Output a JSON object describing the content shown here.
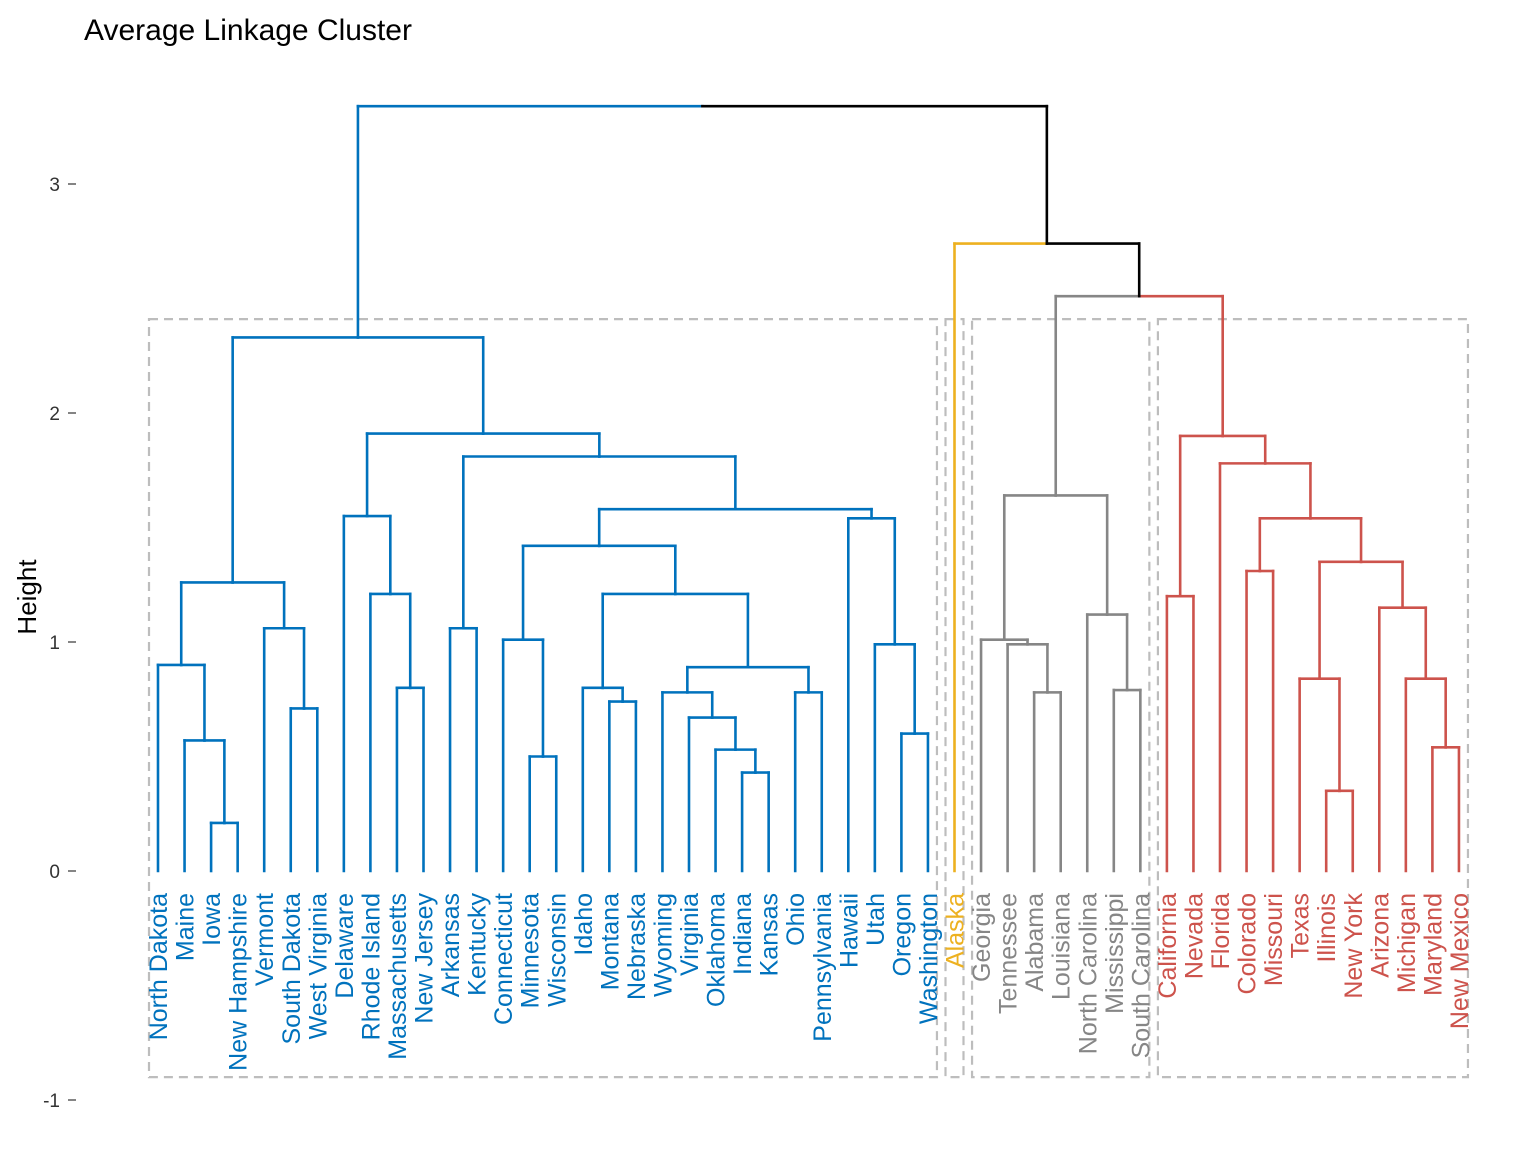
{
  "chart_data": {
    "type": "dendrogram",
    "title": "Average Linkage Cluster",
    "xlabel": "",
    "ylabel": "Height",
    "ylim": [
      -1,
      3.4
    ],
    "yticks": [
      -1,
      0,
      1,
      2,
      3
    ],
    "grid": false,
    "leaves": [
      "North Dakota",
      "Maine",
      "Iowa",
      "New Hampshire",
      "Vermont",
      "South Dakota",
      "West Virginia",
      "Delaware",
      "Rhode Island",
      "Massachusetts",
      "New Jersey",
      "Arkansas",
      "Kentucky",
      "Connecticut",
      "Minnesota",
      "Wisconsin",
      "Idaho",
      "Montana",
      "Nebraska",
      "Wyoming",
      "Virginia",
      "Oklahoma",
      "Indiana",
      "Kansas",
      "Ohio",
      "Pennsylvania",
      "Hawaii",
      "Utah",
      "Oregon",
      "Washington",
      "Alaska",
      "Georgia",
      "Tennessee",
      "Alabama",
      "Louisiana",
      "North Carolina",
      "Mississippi",
      "South Carolina",
      "California",
      "Nevada",
      "Florida",
      "Colorado",
      "Missouri",
      "Texas",
      "Illinois",
      "New York",
      "Arizona",
      "Michigan",
      "Maryland",
      "New Mexico"
    ],
    "clusters": [
      {
        "color": "#0072BD",
        "leaves": [
          0,
          29
        ]
      },
      {
        "color": "#EDB120",
        "leaves": [
          30,
          30
        ]
      },
      {
        "color": "#868686",
        "leaves": [
          31,
          37
        ]
      },
      {
        "color": "#CD534C",
        "leaves": [
          38,
          49
        ]
      }
    ],
    "link_colors": {
      "root": "#000000"
    },
    "merges": [
      {
        "id": "A1",
        "left": 2,
        "right": 3,
        "height": 0.21,
        "color": "#0072BD"
      },
      {
        "id": "A2",
        "left": 1,
        "right": "A1",
        "height": 0.57,
        "color": "#0072BD"
      },
      {
        "id": "A3",
        "left": 0,
        "right": "A2",
        "height": 0.9,
        "color": "#0072BD"
      },
      {
        "id": "A4",
        "left": 5,
        "right": 6,
        "height": 0.71,
        "color": "#0072BD"
      },
      {
        "id": "A5",
        "left": 4,
        "right": "A4",
        "height": 1.06,
        "color": "#0072BD"
      },
      {
        "id": "A6",
        "left": "A3",
        "right": "A5",
        "height": 1.26,
        "color": "#0072BD"
      },
      {
        "id": "B1",
        "left": 9,
        "right": 10,
        "height": 0.8,
        "color": "#0072BD"
      },
      {
        "id": "B2",
        "left": 8,
        "right": "B1",
        "height": 1.21,
        "color": "#0072BD"
      },
      {
        "id": "B3",
        "left": 7,
        "right": "B2",
        "height": 1.55,
        "color": "#0072BD"
      },
      {
        "id": "C1",
        "left": 11,
        "right": 12,
        "height": 1.06,
        "color": "#0072BD"
      },
      {
        "id": "D1",
        "left": 14,
        "right": 15,
        "height": 0.5,
        "color": "#0072BD"
      },
      {
        "id": "D2",
        "left": 13,
        "right": "D1",
        "height": 1.01,
        "color": "#0072BD"
      },
      {
        "id": "E1",
        "left": 17,
        "right": 18,
        "height": 0.74,
        "color": "#0072BD"
      },
      {
        "id": "E2",
        "left": 16,
        "right": "E1",
        "height": 0.8,
        "color": "#0072BD"
      },
      {
        "id": "F1",
        "left": 22,
        "right": 23,
        "height": 0.43,
        "color": "#0072BD"
      },
      {
        "id": "F2",
        "left": 21,
        "right": "F1",
        "height": 0.53,
        "color": "#0072BD"
      },
      {
        "id": "F3",
        "left": 20,
        "right": "F2",
        "height": 0.67,
        "color": "#0072BD"
      },
      {
        "id": "F4",
        "left": 19,
        "right": "F3",
        "height": 0.78,
        "color": "#0072BD"
      },
      {
        "id": "F5",
        "left": 24,
        "right": 25,
        "height": 0.78,
        "color": "#0072BD"
      },
      {
        "id": "F6",
        "left": "F4",
        "right": "F5",
        "height": 0.89,
        "color": "#0072BD"
      },
      {
        "id": "E3",
        "left": "E2",
        "right": "F6",
        "height": 1.21,
        "color": "#0072BD"
      },
      {
        "id": "D3",
        "left": "D2",
        "right": "E3",
        "height": 1.42,
        "color": "#0072BD"
      },
      {
        "id": "G1",
        "left": 28,
        "right": 29,
        "height": 0.6,
        "color": "#0072BD"
      },
      {
        "id": "G2",
        "left": 27,
        "right": "G1",
        "height": 0.99,
        "color": "#0072BD"
      },
      {
        "id": "G3",
        "left": 26,
        "right": "G2",
        "height": 1.54,
        "color": "#0072BD"
      },
      {
        "id": "D4",
        "left": "D3",
        "right": "G3",
        "height": 1.58,
        "color": "#0072BD"
      },
      {
        "id": "C2",
        "left": "C1",
        "right": "D4",
        "height": 1.81,
        "color": "#0072BD"
      },
      {
        "id": "B4",
        "left": "B3",
        "right": "C2",
        "height": 1.91,
        "color": "#0072BD"
      },
      {
        "id": "A7",
        "left": "A6",
        "right": "B4",
        "height": 2.33,
        "color": "#0072BD"
      },
      {
        "id": "H1",
        "left": 33,
        "right": 34,
        "height": 0.78,
        "color": "#868686"
      },
      {
        "id": "H2",
        "left": 32,
        "right": "H1",
        "height": 0.99,
        "color": "#868686"
      },
      {
        "id": "H3",
        "left": 31,
        "right": "H2",
        "height": 1.01,
        "color": "#868686"
      },
      {
        "id": "H4",
        "left": 36,
        "right": 37,
        "height": 0.79,
        "color": "#868686"
      },
      {
        "id": "H5",
        "left": 35,
        "right": "H4",
        "height": 1.12,
        "color": "#868686"
      },
      {
        "id": "H6",
        "left": "H3",
        "right": "H5",
        "height": 1.64,
        "color": "#868686"
      },
      {
        "id": "J1",
        "left": 38,
        "right": 39,
        "height": 1.2,
        "color": "#CD534C"
      },
      {
        "id": "J2",
        "left": 41,
        "right": 42,
        "height": 1.31,
        "color": "#CD534C"
      },
      {
        "id": "J3",
        "left": 44,
        "right": 45,
        "height": 0.35,
        "color": "#CD534C"
      },
      {
        "id": "J4",
        "left": 43,
        "right": "J3",
        "height": 0.84,
        "color": "#CD534C"
      },
      {
        "id": "J5",
        "left": 48,
        "right": 49,
        "height": 0.54,
        "color": "#CD534C"
      },
      {
        "id": "J6",
        "left": 47,
        "right": "J5",
        "height": 0.84,
        "color": "#CD534C"
      },
      {
        "id": "J7",
        "left": 46,
        "right": "J6",
        "height": 1.15,
        "color": "#CD534C"
      },
      {
        "id": "J8",
        "left": "J4",
        "right": "J7",
        "height": 1.35,
        "color": "#CD534C"
      },
      {
        "id": "J9",
        "left": "J2",
        "right": "J8",
        "height": 1.54,
        "color": "#CD534C"
      },
      {
        "id": "J10",
        "left": 40,
        "right": "J9",
        "height": 1.78,
        "color": "#CD534C"
      },
      {
        "id": "J11",
        "left": "J1",
        "right": "J10",
        "height": 1.9,
        "color": "#CD534C"
      },
      {
        "id": "K1",
        "left": "H6",
        "right": "J11",
        "height": 2.51,
        "color": "#868686",
        "right_color": "#CD534C"
      },
      {
        "id": "K2",
        "left": 30,
        "right": "K1",
        "height": 2.74,
        "color": "#EDB120",
        "right_color": "#000000"
      },
      {
        "id": "ROOT",
        "left": "A7",
        "right": "K2",
        "height": 3.34,
        "color": "#0072BD",
        "right_color": "#000000"
      }
    ],
    "rect_color": "#BDBDBD"
  }
}
